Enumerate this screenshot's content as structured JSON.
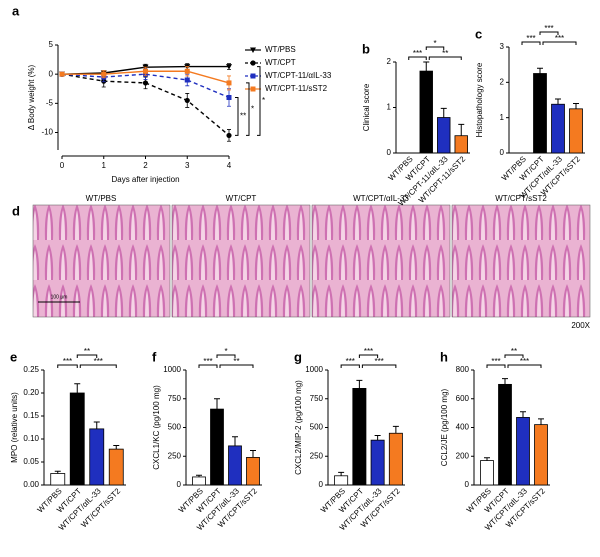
{
  "chart_data": [
    {
      "panel": "a",
      "type": "line",
      "xlabel": "Days after injection",
      "ylabel": "Δ Body weight (%)",
      "x": [
        0,
        1,
        2,
        3,
        4
      ],
      "xlim": [
        0,
        4
      ],
      "xticks": [
        0,
        1,
        2,
        3,
        4
      ],
      "ylim": [
        -13,
        5
      ],
      "yticks": [
        5,
        0,
        -5,
        -10
      ],
      "series": [
        {
          "name": "WT/PBS",
          "color": "#000000",
          "marker": "triangle-down",
          "linestyle": "solid",
          "values": [
            0,
            0.2,
            1.2,
            1.3,
            1.3
          ],
          "errors": [
            0.3,
            0.4,
            0.5,
            0.5,
            0.5
          ]
        },
        {
          "name": "WT/CPT",
          "color": "#000000",
          "marker": "circle",
          "linestyle": "dashed",
          "values": [
            0,
            -1.2,
            -1.5,
            -4.5,
            -10.5
          ],
          "errors": [
            0.3,
            1.0,
            1.0,
            1.2,
            1.0
          ]
        },
        {
          "name": "WT/CPT-11/αIL-33",
          "color": "#1f2fbf",
          "marker": "square",
          "linestyle": "dashed",
          "values": [
            0,
            -0.5,
            0,
            -1,
            -4
          ],
          "errors": [
            0.3,
            0.8,
            0.9,
            1.0,
            1.5
          ]
        },
        {
          "name": "WT/CPT-11/sST2",
          "color": "#f47a20",
          "marker": "square",
          "linestyle": "solid",
          "values": [
            0,
            0,
            0.5,
            0.5,
            -1.5
          ],
          "errors": [
            0.3,
            0.6,
            0.7,
            0.8,
            1.2
          ]
        }
      ],
      "significance": [
        "**",
        "*",
        "*"
      ]
    },
    {
      "panel": "b",
      "type": "bar",
      "ylabel": "Clinical score",
      "categories": [
        "WT/PBS",
        "WT/CPT",
        "WT/CPT-11/αIL-33",
        "WT/CPT-11/sST2"
      ],
      "values": [
        0,
        1.8,
        0.78,
        0.38
      ],
      "errors": [
        0,
        0.2,
        0.2,
        0.25
      ],
      "colors": [
        "#ffffff",
        "#000000",
        "#1f2fbf",
        "#f47a20"
      ],
      "ylim": [
        0,
        2
      ],
      "yticks": [
        0,
        1,
        2
      ],
      "significance": [
        "***",
        "*",
        "**"
      ]
    },
    {
      "panel": "c",
      "type": "bar",
      "ylabel": "Histopathology score",
      "categories": [
        "WT/PBS",
        "WT/CPT",
        "WT/CPT/αIL-33",
        "WT/CPT/sST2"
      ],
      "values": [
        0,
        2.25,
        1.38,
        1.25
      ],
      "errors": [
        0,
        0.15,
        0.15,
        0.15
      ],
      "colors": [
        "#ffffff",
        "#000000",
        "#1f2fbf",
        "#f47a20"
      ],
      "ylim": [
        0,
        3
      ],
      "yticks": [
        0,
        1,
        2,
        3
      ],
      "significance": [
        "***",
        "***",
        "***"
      ]
    },
    {
      "panel": "e",
      "type": "bar",
      "ylabel": "MPO (relative units)",
      "categories": [
        "WT/PBS",
        "WT/CPT",
        "WT/CPT/αIL-33",
        "WT/CPT/sST2"
      ],
      "values": [
        0.025,
        0.2,
        0.122,
        0.078
      ],
      "errors": [
        0.005,
        0.02,
        0.015,
        0.008
      ],
      "colors": [
        "#ffffff",
        "#000000",
        "#1f2fbf",
        "#f47a20"
      ],
      "ylim": [
        0,
        0.25
      ],
      "yticks": [
        {
          "value": 0,
          "label": "0.00"
        },
        0.05,
        {
          "value": 0.1,
          "label": "0.10"
        },
        0.15,
        {
          "value": 0.2,
          "label": "0.20"
        },
        0.25
      ],
      "significance": [
        "***",
        "**",
        "***"
      ]
    },
    {
      "panel": "f",
      "type": "bar",
      "ylabel": "CXCL1/KC (pg/100 mg)",
      "categories": [
        "WT/PBS",
        "WT/CPT",
        "WT/CPT/αIL-33",
        "WT/CPT/sST2"
      ],
      "values": [
        70,
        660,
        340,
        240
      ],
      "errors": [
        15,
        90,
        80,
        60
      ],
      "colors": [
        "#ffffff",
        "#000000",
        "#1f2fbf",
        "#f47a20"
      ],
      "ylim": [
        0,
        1000
      ],
      "yticks": [
        0,
        250,
        500,
        750,
        1000
      ],
      "significance": [
        "***",
        "*",
        "**"
      ]
    },
    {
      "panel": "g",
      "type": "bar",
      "ylabel": "CXCL2/MIP-2 (pg/100 mg)",
      "categories": [
        "WT/PBS",
        "WT/CPT",
        "WT/CPT/αIL-33",
        "WT/CPT/sST2"
      ],
      "values": [
        80,
        840,
        390,
        450
      ],
      "errors": [
        30,
        70,
        40,
        60
      ],
      "colors": [
        "#ffffff",
        "#000000",
        "#1f2fbf",
        "#f47a20"
      ],
      "ylim": [
        0,
        1000
      ],
      "yticks": [
        0,
        250,
        500,
        750,
        1000
      ],
      "significance": [
        "***",
        "***",
        "***"
      ]
    },
    {
      "panel": "h",
      "type": "bar",
      "ylabel": "CCL2/JE (pg/100 mg)",
      "categories": [
        "WT/PBS",
        "WT/CPT",
        "WT/CPT/αIL-33",
        "WT/CPT/sST2"
      ],
      "values": [
        170,
        700,
        470,
        420
      ],
      "errors": [
        20,
        40,
        40,
        40
      ],
      "colors": [
        "#ffffff",
        "#000000",
        "#1f2fbf",
        "#f47a20"
      ],
      "ylim": [
        0,
        800
      ],
      "yticks": [
        0,
        200,
        400,
        600,
        800
      ],
      "significance": [
        "***",
        "**",
        "***"
      ]
    }
  ],
  "micrographs": {
    "panel": "d",
    "labels": [
      "WT/PBS",
      "WT/CPT",
      "WT/CPT/αIL-33",
      "WT/CPT/sST2"
    ],
    "magnification": "200X",
    "scale_bar": "100 μm"
  }
}
